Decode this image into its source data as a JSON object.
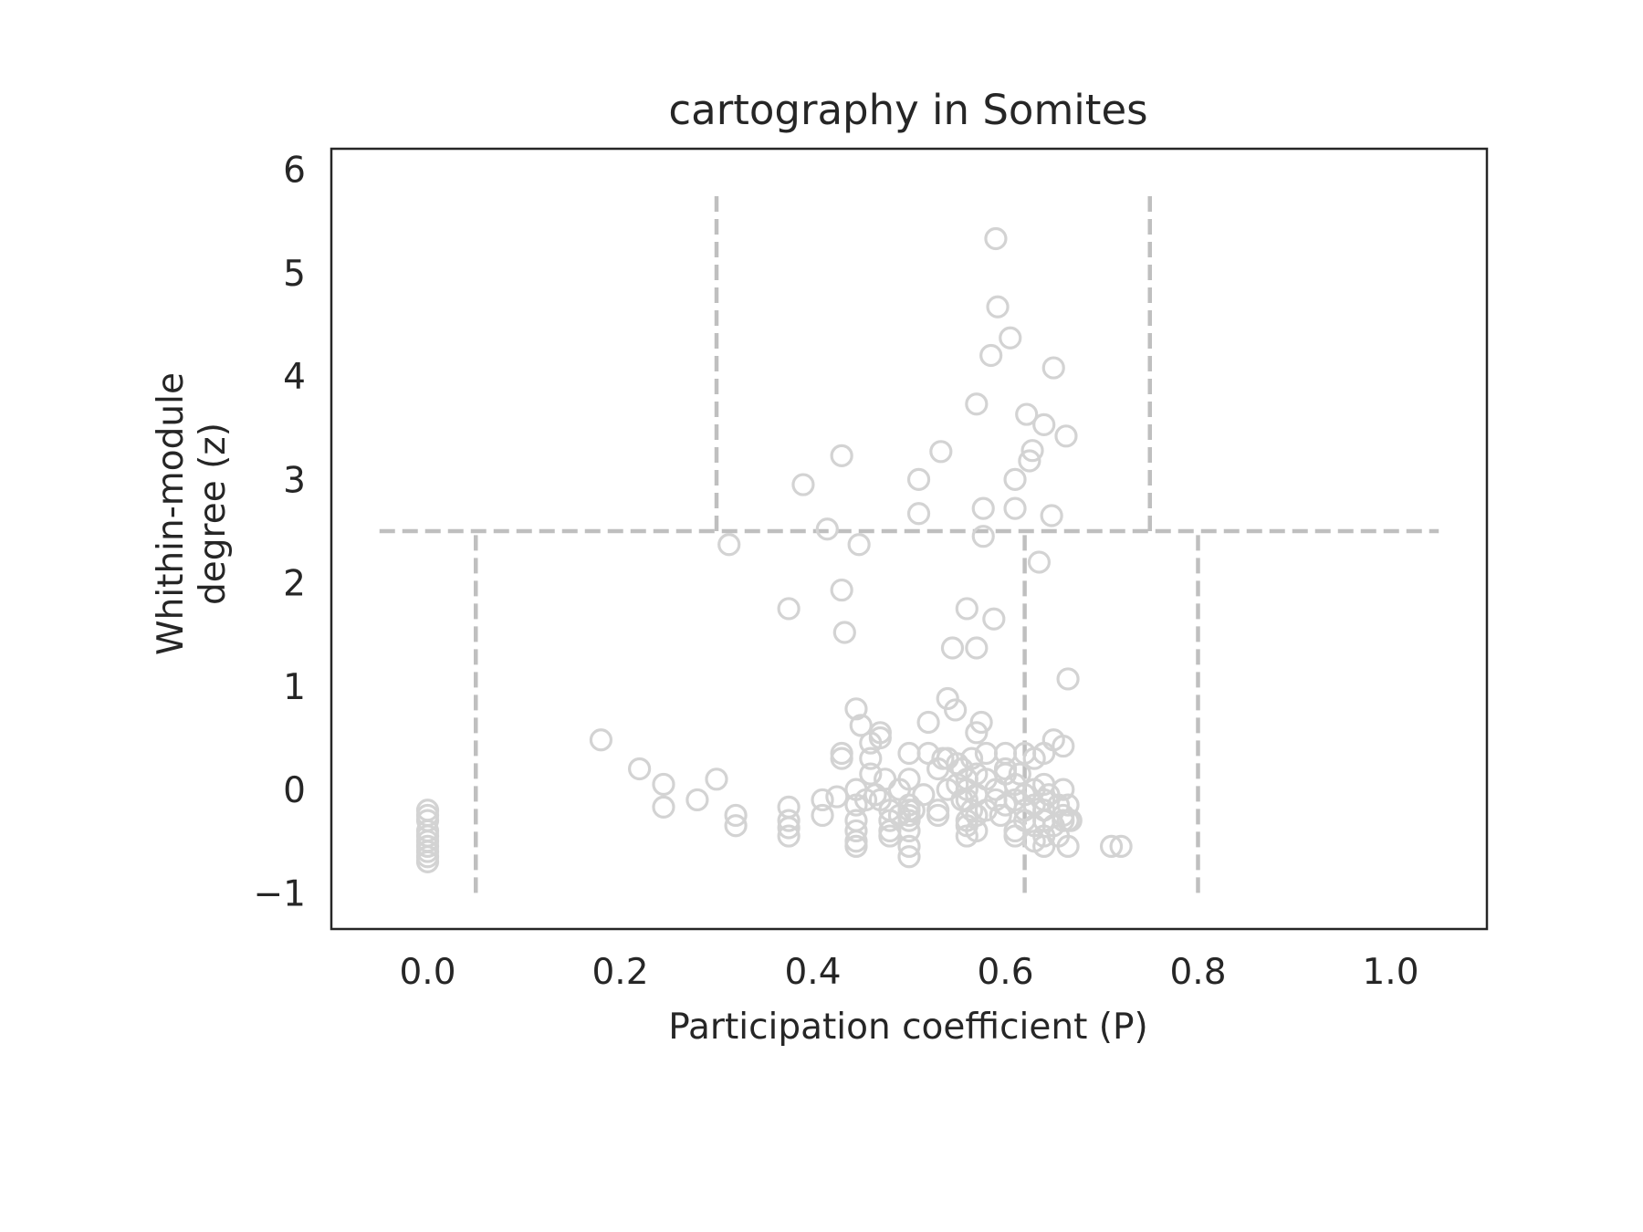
{
  "chart_data": {
    "type": "scatter",
    "title": "cartography in Somites",
    "xlabel": "Participation coefficient (P)",
    "ylabel_lines": [
      "Whithin-module",
      "degree (z)"
    ],
    "xlim": [
      -0.1,
      1.1
    ],
    "ylim": [
      -1.35,
      6.2
    ],
    "xticks": [
      {
        "value": 0.0,
        "label": "0.0"
      },
      {
        "value": 0.2,
        "label": "0.2"
      },
      {
        "value": 0.4,
        "label": "0.4"
      },
      {
        "value": 0.6,
        "label": "0.6"
      },
      {
        "value": 0.8,
        "label": "0.8"
      },
      {
        "value": 1.0,
        "label": "1.0"
      }
    ],
    "yticks": [
      {
        "value": -1,
        "label": "−1"
      },
      {
        "value": 0,
        "label": "0"
      },
      {
        "value": 1,
        "label": "1"
      },
      {
        "value": 2,
        "label": "2"
      },
      {
        "value": 3,
        "label": "3"
      },
      {
        "value": 4,
        "label": "4"
      },
      {
        "value": 5,
        "label": "5"
      },
      {
        "value": 6,
        "label": "6"
      }
    ],
    "grid": false,
    "marker": {
      "style": "open-circle",
      "color": "#d3d3d3"
    },
    "guide_color": "#bfbfbf",
    "reference_lines": [
      {
        "orientation": "horizontal",
        "y": 2.5,
        "x_range": [
          -0.05,
          1.05
        ]
      },
      {
        "orientation": "vertical",
        "x": 0.05,
        "y_range": [
          -1,
          2.5
        ]
      },
      {
        "orientation": "vertical",
        "x": 0.62,
        "y_range": [
          -1,
          2.5
        ]
      },
      {
        "orientation": "vertical",
        "x": 0.8,
        "y_range": [
          -1,
          2.5
        ]
      },
      {
        "orientation": "vertical",
        "x": 0.3,
        "y_range": [
          2.5,
          5.8
        ]
      },
      {
        "orientation": "vertical",
        "x": 0.75,
        "y_range": [
          2.5,
          5.8
        ]
      }
    ],
    "points": [
      [
        0.0,
        -0.2
      ],
      [
        0.0,
        -0.25
      ],
      [
        0.0,
        -0.3
      ],
      [
        0.0,
        -0.4
      ],
      [
        0.0,
        -0.45
      ],
      [
        0.0,
        -0.5
      ],
      [
        0.0,
        -0.55
      ],
      [
        0.0,
        -0.6
      ],
      [
        0.0,
        -0.65
      ],
      [
        0.0,
        -0.7
      ],
      [
        0.18,
        0.48
      ],
      [
        0.22,
        0.2
      ],
      [
        0.245,
        0.05
      ],
      [
        0.245,
        -0.17
      ],
      [
        0.28,
        -0.1
      ],
      [
        0.3,
        0.1
      ],
      [
        0.32,
        -0.25
      ],
      [
        0.32,
        -0.35
      ],
      [
        0.313,
        2.37
      ],
      [
        0.375,
        -0.17
      ],
      [
        0.375,
        -0.3
      ],
      [
        0.375,
        -0.37
      ],
      [
        0.375,
        -0.45
      ],
      [
        0.375,
        1.75
      ],
      [
        0.39,
        2.95
      ],
      [
        0.41,
        -0.1
      ],
      [
        0.41,
        -0.25
      ],
      [
        0.415,
        2.52
      ],
      [
        0.425,
        -0.07
      ],
      [
        0.43,
        0.3
      ],
      [
        0.43,
        0.35
      ],
      [
        0.43,
        1.93
      ],
      [
        0.43,
        3.23
      ],
      [
        0.433,
        1.52
      ],
      [
        0.445,
        0.78
      ],
      [
        0.445,
        0.0
      ],
      [
        0.445,
        -0.15
      ],
      [
        0.445,
        -0.3
      ],
      [
        0.445,
        -0.4
      ],
      [
        0.445,
        -0.5
      ],
      [
        0.445,
        -0.55
      ],
      [
        0.448,
        2.37
      ],
      [
        0.45,
        0.62
      ],
      [
        0.455,
        -0.1
      ],
      [
        0.46,
        0.45
      ],
      [
        0.46,
        0.3
      ],
      [
        0.46,
        0.15
      ],
      [
        0.465,
        -0.05
      ],
      [
        0.47,
        0.55
      ],
      [
        0.47,
        0.5
      ],
      [
        0.47,
        -0.1
      ],
      [
        0.475,
        0.1
      ],
      [
        0.48,
        -0.2
      ],
      [
        0.48,
        -0.3
      ],
      [
        0.48,
        -0.4
      ],
      [
        0.48,
        -0.45
      ],
      [
        0.49,
        0.0
      ],
      [
        0.49,
        -0.25
      ],
      [
        0.5,
        0.35
      ],
      [
        0.5,
        0.1
      ],
      [
        0.5,
        -0.15
      ],
      [
        0.5,
        -0.2
      ],
      [
        0.5,
        -0.25
      ],
      [
        0.5,
        -0.3
      ],
      [
        0.5,
        -0.4
      ],
      [
        0.5,
        -0.55
      ],
      [
        0.5,
        -0.65
      ],
      [
        0.505,
        -0.2
      ],
      [
        0.51,
        3.0
      ],
      [
        0.51,
        2.67
      ],
      [
        0.515,
        -0.05
      ],
      [
        0.52,
        0.65
      ],
      [
        0.52,
        0.35
      ],
      [
        0.53,
        0.2
      ],
      [
        0.53,
        -0.2
      ],
      [
        0.53,
        -0.25
      ],
      [
        0.533,
        3.27
      ],
      [
        0.535,
        0.3
      ],
      [
        0.54,
        0.88
      ],
      [
        0.54,
        0.3
      ],
      [
        0.54,
        0.0
      ],
      [
        0.545,
        1.37
      ],
      [
        0.548,
        0.77
      ],
      [
        0.55,
        0.25
      ],
      [
        0.55,
        0.05
      ],
      [
        0.555,
        0.2
      ],
      [
        0.555,
        -0.1
      ],
      [
        0.56,
        1.75
      ],
      [
        0.56,
        0.1
      ],
      [
        0.56,
        0.0
      ],
      [
        0.56,
        -0.1
      ],
      [
        0.56,
        -0.3
      ],
      [
        0.56,
        -0.35
      ],
      [
        0.56,
        -0.45
      ],
      [
        0.565,
        -0.2
      ],
      [
        0.565,
        0.3
      ],
      [
        0.57,
        0.55
      ],
      [
        0.57,
        0.15
      ],
      [
        0.57,
        -0.05
      ],
      [
        0.57,
        -0.25
      ],
      [
        0.57,
        -0.4
      ],
      [
        0.57,
        1.37
      ],
      [
        0.57,
        3.73
      ],
      [
        0.575,
        0.65
      ],
      [
        0.577,
        2.72
      ],
      [
        0.577,
        2.45
      ],
      [
        0.58,
        0.35
      ],
      [
        0.58,
        0.1
      ],
      [
        0.58,
        -0.2
      ],
      [
        0.585,
        4.2
      ],
      [
        0.588,
        1.65
      ],
      [
        0.59,
        5.33
      ],
      [
        0.59,
        0.0
      ],
      [
        0.59,
        -0.1
      ],
      [
        0.592,
        4.67
      ],
      [
        0.595,
        -0.25
      ],
      [
        0.6,
        0.35
      ],
      [
        0.6,
        0.2
      ],
      [
        0.6,
        0.15
      ],
      [
        0.6,
        -0.15
      ],
      [
        0.605,
        4.37
      ],
      [
        0.61,
        0.05
      ],
      [
        0.61,
        -0.1
      ],
      [
        0.61,
        -0.4
      ],
      [
        0.61,
        -0.45
      ],
      [
        0.61,
        3.0
      ],
      [
        0.61,
        2.72
      ],
      [
        0.615,
        0.15
      ],
      [
        0.62,
        0.35
      ],
      [
        0.62,
        -0.05
      ],
      [
        0.62,
        -0.2
      ],
      [
        0.62,
        -0.3
      ],
      [
        0.622,
        3.63
      ],
      [
        0.625,
        3.18
      ],
      [
        0.628,
        3.28
      ],
      [
        0.63,
        0.3
      ],
      [
        0.63,
        0.0
      ],
      [
        0.63,
        -0.15
      ],
      [
        0.63,
        -0.35
      ],
      [
        0.63,
        -0.5
      ],
      [
        0.635,
        2.2
      ],
      [
        0.64,
        3.53
      ],
      [
        0.64,
        0.35
      ],
      [
        0.64,
        0.05
      ],
      [
        0.64,
        -0.1
      ],
      [
        0.64,
        -0.2
      ],
      [
        0.64,
        -0.3
      ],
      [
        0.64,
        -0.45
      ],
      [
        0.64,
        -0.55
      ],
      [
        0.645,
        -0.05
      ],
      [
        0.648,
        2.65
      ],
      [
        0.65,
        4.08
      ],
      [
        0.65,
        0.48
      ],
      [
        0.65,
        -0.35
      ],
      [
        0.655,
        -0.15
      ],
      [
        0.655,
        -0.45
      ],
      [
        0.66,
        0.42
      ],
      [
        0.66,
        0.0
      ],
      [
        0.66,
        -0.25
      ],
      [
        0.66,
        -0.3
      ],
      [
        0.663,
        3.42
      ],
      [
        0.665,
        1.07
      ],
      [
        0.665,
        -0.15
      ],
      [
        0.665,
        -0.3
      ],
      [
        0.665,
        -0.55
      ],
      [
        0.668,
        -0.3
      ],
      [
        0.71,
        -0.55
      ],
      [
        0.72,
        -0.55
      ]
    ]
  }
}
